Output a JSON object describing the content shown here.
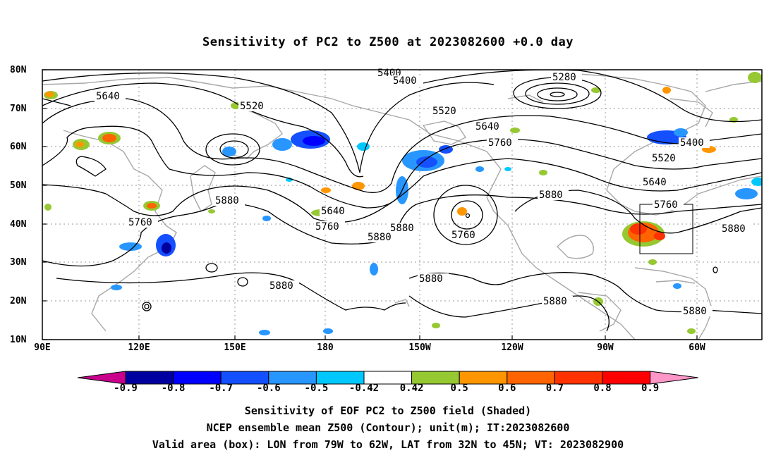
{
  "title": "Sensitivity of PC2 to Z500 at 2023082600 +0.0 day",
  "lat_labels": [
    "80N",
    "70N",
    "60N",
    "50N",
    "40N",
    "30N",
    "20N",
    "10N"
  ],
  "lon_labels": [
    "90E",
    "120E",
    "150E",
    "180",
    "150W",
    "120W",
    "90W",
    "60W"
  ],
  "contour_labels": [
    "5400",
    "5400",
    "5280",
    "5640",
    "5520",
    "5520",
    "5640",
    "5760",
    "5400",
    "5520",
    "5640",
    "5880",
    "5640",
    "5760",
    "5760",
    "5880",
    "5880",
    "5760",
    "5880",
    "5760",
    "5880",
    "5880",
    "5880",
    "5880",
    "5880"
  ],
  "colorbar": {
    "ticks": [
      "-0.9",
      "-0.8",
      "-0.7",
      "-0.6",
      "-0.5",
      "-0.42",
      "0.42",
      "0.5",
      "0.6",
      "0.7",
      "0.8",
      "0.9"
    ],
    "colors": [
      "#c8008c",
      "#0000a0",
      "#0000ff",
      "#1450ff",
      "#2896ff",
      "#00c8ff",
      "#ffffff",
      "#96c832",
      "#ff9600",
      "#ff6400",
      "#ff3200",
      "#ff0000",
      "#ff96c8"
    ]
  },
  "captions": [
    "Sensitivity of EOF PC2 to Z500 field (Shaded)",
    "NCEP ensemble mean Z500 (Contour); unit(m); IT:2023082600",
    "Valid area (box): LON from 79W to 62W, LAT from 32N to 45N; VT: 2023082900"
  ]
}
